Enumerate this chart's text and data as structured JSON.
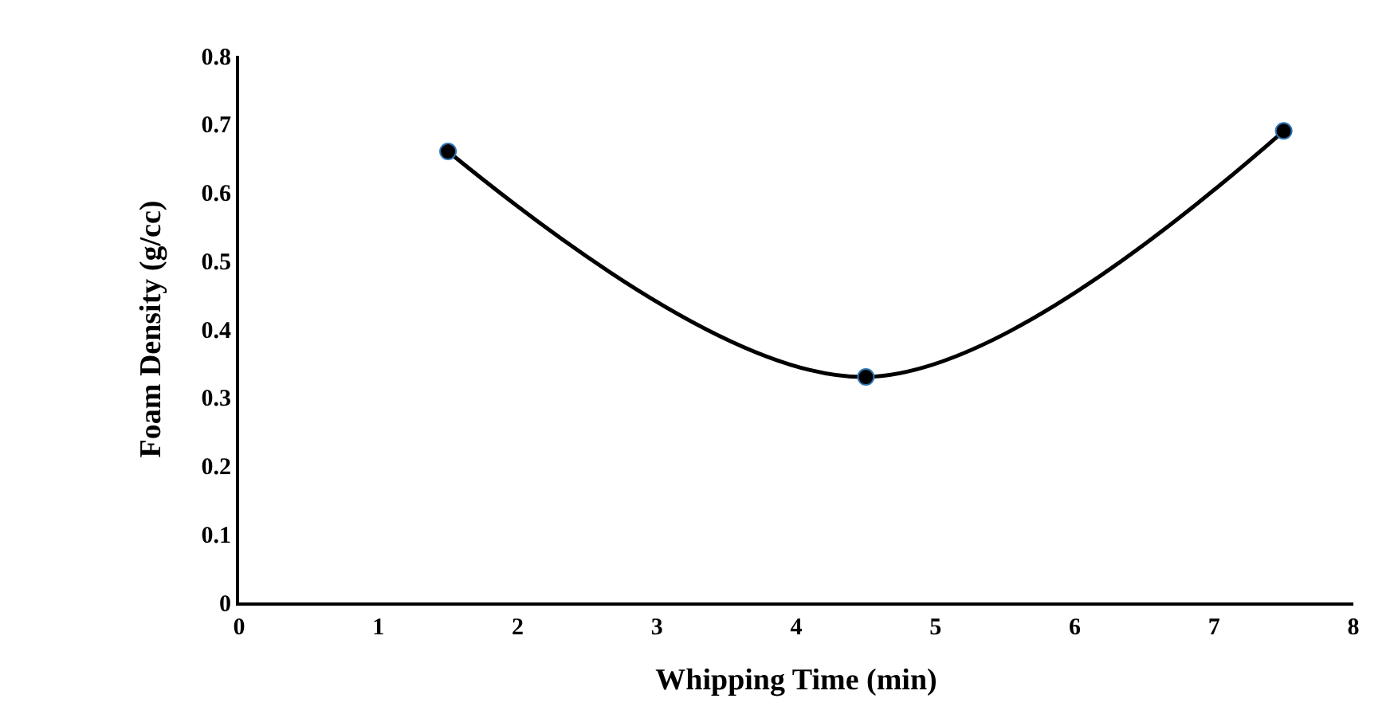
{
  "chart_data": {
    "type": "line",
    "xlabel": "Whipping Time (min)",
    "ylabel": "Foam Density (g/cc)",
    "x": [
      1.5,
      4.5,
      7.5
    ],
    "series": [
      {
        "color": "#000000",
        "values": [
          0.66,
          0.33,
          0.69
        ]
      }
    ],
    "xlim": [
      0,
      8
    ],
    "xticks": [
      0,
      1,
      2,
      3,
      4,
      5,
      6,
      7,
      8
    ],
    "ylim": [
      0,
      0.8
    ],
    "yticks": [
      {
        "value": 0,
        "label": "0"
      },
      0.1,
      0.2,
      0.3,
      0.4,
      0.5,
      0.6,
      0.7,
      0.8
    ],
    "grid": false,
    "legend": false,
    "marker": "circle",
    "line_style": "solid"
  }
}
